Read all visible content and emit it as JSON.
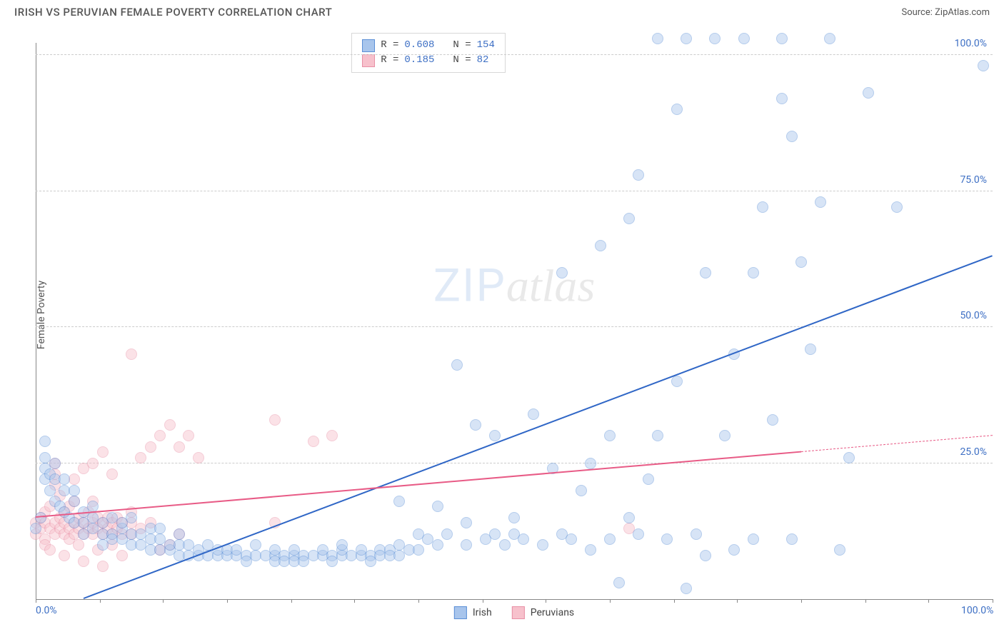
{
  "header": {
    "title": "IRISH VS PERUVIAN FEMALE POVERTY CORRELATION CHART",
    "source": "Source: ZipAtlas.com"
  },
  "chart": {
    "type": "scatter",
    "ylabel": "Female Poverty",
    "xlim": [
      0,
      100
    ],
    "ylim": [
      0,
      105
    ],
    "xtick_positions": [
      0,
      6.7,
      13.3,
      20,
      26.7,
      33.3,
      40,
      46.7,
      53.3,
      60,
      66.7,
      73.3,
      80,
      86.7,
      93.3,
      100
    ],
    "xtick_labels": {
      "0": "0.0%",
      "100": "100.0%"
    },
    "ytick_positions": [
      25,
      50,
      75,
      100
    ],
    "ytick_labels": {
      "25": "25.0%",
      "50": "50.0%",
      "75": "75.0%",
      "100": "100.0%"
    },
    "background_color": "#ffffff",
    "grid_color": "#cccccc",
    "tick_label_color": "#3d6fc4",
    "marker_radius": 8,
    "marker_opacity": 0.45,
    "series": {
      "irish": {
        "label": "Irish",
        "fill": "#a8c5ec",
        "stroke": "#5b8fd6",
        "trend_color": "#2f66c6",
        "R": "0.608",
        "N": "154",
        "trend": {
          "x1": 5,
          "y1": 0,
          "x2": 100,
          "y2": 63
        },
        "points": [
          [
            0,
            13
          ],
          [
            0.5,
            15
          ],
          [
            1,
            24
          ],
          [
            1,
            22
          ],
          [
            1,
            26
          ],
          [
            1,
            29
          ],
          [
            1.5,
            20
          ],
          [
            1.5,
            23
          ],
          [
            2,
            18
          ],
          [
            2,
            22
          ],
          [
            2,
            25
          ],
          [
            2.5,
            17
          ],
          [
            3,
            16
          ],
          [
            3,
            20
          ],
          [
            3,
            22
          ],
          [
            3.5,
            15
          ],
          [
            4,
            14
          ],
          [
            4,
            18
          ],
          [
            4,
            20
          ],
          [
            5,
            14
          ],
          [
            5,
            16
          ],
          [
            5,
            12
          ],
          [
            6,
            13
          ],
          [
            6,
            15
          ],
          [
            6,
            17
          ],
          [
            7,
            12
          ],
          [
            7,
            14
          ],
          [
            7,
            10
          ],
          [
            8,
            12
          ],
          [
            8,
            15
          ],
          [
            8,
            11
          ],
          [
            9,
            11
          ],
          [
            9,
            13
          ],
          [
            9,
            14
          ],
          [
            10,
            10
          ],
          [
            10,
            12
          ],
          [
            10,
            15
          ],
          [
            11,
            10
          ],
          [
            11,
            12
          ],
          [
            12,
            9
          ],
          [
            12,
            11
          ],
          [
            12,
            13
          ],
          [
            13,
            9
          ],
          [
            13,
            11
          ],
          [
            13,
            13
          ],
          [
            14,
            9
          ],
          [
            14,
            10
          ],
          [
            15,
            8
          ],
          [
            15,
            10
          ],
          [
            15,
            12
          ],
          [
            16,
            8
          ],
          [
            16,
            10
          ],
          [
            17,
            8
          ],
          [
            17,
            9
          ],
          [
            18,
            8
          ],
          [
            18,
            10
          ],
          [
            19,
            8
          ],
          [
            19,
            9
          ],
          [
            20,
            8
          ],
          [
            20,
            9
          ],
          [
            21,
            8
          ],
          [
            21,
            9
          ],
          [
            22,
            8
          ],
          [
            22,
            7
          ],
          [
            23,
            8
          ],
          [
            23,
            10
          ],
          [
            24,
            8
          ],
          [
            25,
            8
          ],
          [
            25,
            9
          ],
          [
            25,
            7
          ],
          [
            26,
            8
          ],
          [
            26,
            7
          ],
          [
            27,
            8
          ],
          [
            27,
            9
          ],
          [
            27,
            7
          ],
          [
            28,
            8
          ],
          [
            28,
            7
          ],
          [
            29,
            8
          ],
          [
            30,
            8
          ],
          [
            30,
            9
          ],
          [
            31,
            8
          ],
          [
            31,
            7
          ],
          [
            32,
            8
          ],
          [
            32,
            9
          ],
          [
            32,
            10
          ],
          [
            33,
            8
          ],
          [
            34,
            8
          ],
          [
            34,
            9
          ],
          [
            35,
            8
          ],
          [
            35,
            7
          ],
          [
            36,
            9
          ],
          [
            36,
            8
          ],
          [
            37,
            9
          ],
          [
            37,
            8
          ],
          [
            38,
            8
          ],
          [
            38,
            10
          ],
          [
            38,
            18
          ],
          [
            39,
            9
          ],
          [
            40,
            12
          ],
          [
            40,
            9
          ],
          [
            41,
            11
          ],
          [
            42,
            10
          ],
          [
            42,
            17
          ],
          [
            43,
            12
          ],
          [
            44,
            43
          ],
          [
            45,
            14
          ],
          [
            45,
            10
          ],
          [
            46,
            32
          ],
          [
            47,
            11
          ],
          [
            48,
            12
          ],
          [
            48,
            30
          ],
          [
            49,
            10
          ],
          [
            50,
            12
          ],
          [
            50,
            15
          ],
          [
            51,
            11
          ],
          [
            52,
            34
          ],
          [
            53,
            10
          ],
          [
            54,
            24
          ],
          [
            55,
            12
          ],
          [
            55,
            60
          ],
          [
            56,
            11
          ],
          [
            57,
            20
          ],
          [
            58,
            9
          ],
          [
            58,
            25
          ],
          [
            59,
            65
          ],
          [
            60,
            11
          ],
          [
            60,
            30
          ],
          [
            61,
            3
          ],
          [
            62,
            70
          ],
          [
            62,
            15
          ],
          [
            63,
            12
          ],
          [
            63,
            78
          ],
          [
            64,
            22
          ],
          [
            65,
            30
          ],
          [
            65,
            103
          ],
          [
            66,
            11
          ],
          [
            67,
            40
          ],
          [
            67,
            90
          ],
          [
            68,
            2
          ],
          [
            68,
            103
          ],
          [
            69,
            12
          ],
          [
            70,
            8
          ],
          [
            70,
            60
          ],
          [
            71,
            103
          ],
          [
            72,
            30
          ],
          [
            73,
            9
          ],
          [
            73,
            45
          ],
          [
            74,
            103
          ],
          [
            75,
            11
          ],
          [
            75,
            60
          ],
          [
            76,
            72
          ],
          [
            77,
            33
          ],
          [
            78,
            92
          ],
          [
            78,
            103
          ],
          [
            79,
            85
          ],
          [
            79,
            11
          ],
          [
            80,
            62
          ],
          [
            81,
            46
          ],
          [
            82,
            73
          ],
          [
            83,
            103
          ],
          [
            84,
            9
          ],
          [
            85,
            26
          ],
          [
            87,
            93
          ],
          [
            90,
            72
          ],
          [
            99,
            98
          ]
        ]
      },
      "peruvians": {
        "label": "Peruvians",
        "fill": "#f7c1cc",
        "stroke": "#e88fa5",
        "trend_color": "#e85b86",
        "R": "0.185",
        "N": "82",
        "trend": {
          "x1": 0,
          "y1": 15,
          "x2": 80,
          "y2": 27
        },
        "trend_dash": {
          "x1": 80,
          "y1": 27,
          "x2": 100,
          "y2": 30
        },
        "points": [
          [
            0,
            14
          ],
          [
            0,
            12
          ],
          [
            0.5,
            13
          ],
          [
            0.5,
            15
          ],
          [
            1,
            14
          ],
          [
            1,
            11
          ],
          [
            1,
            16
          ],
          [
            1,
            10
          ],
          [
            1.5,
            13
          ],
          [
            1.5,
            17
          ],
          [
            1.5,
            9
          ],
          [
            2,
            14
          ],
          [
            2,
            12
          ],
          [
            2,
            25
          ],
          [
            2,
            23
          ],
          [
            2,
            21
          ],
          [
            2.5,
            13
          ],
          [
            2.5,
            15
          ],
          [
            2.5,
            19
          ],
          [
            3,
            12
          ],
          [
            3,
            14
          ],
          [
            3,
            16
          ],
          [
            3,
            8
          ],
          [
            3.5,
            13
          ],
          [
            3.5,
            17
          ],
          [
            3.5,
            11
          ],
          [
            4,
            12
          ],
          [
            4,
            14
          ],
          [
            4,
            18
          ],
          [
            4,
            22
          ],
          [
            4.5,
            13
          ],
          [
            4.5,
            15
          ],
          [
            4.5,
            10
          ],
          [
            5,
            12
          ],
          [
            5,
            14
          ],
          [
            5,
            7
          ],
          [
            5,
            24
          ],
          [
            5.5,
            13
          ],
          [
            5.5,
            16
          ],
          [
            6,
            12
          ],
          [
            6,
            14
          ],
          [
            6,
            18
          ],
          [
            6,
            25
          ],
          [
            6.5,
            13
          ],
          [
            6.5,
            15
          ],
          [
            6.5,
            9
          ],
          [
            7,
            12
          ],
          [
            7,
            14
          ],
          [
            7,
            6
          ],
          [
            7,
            27
          ],
          [
            7.5,
            13
          ],
          [
            7.5,
            15
          ],
          [
            8,
            12
          ],
          [
            8,
            14
          ],
          [
            8,
            10
          ],
          [
            8,
            23
          ],
          [
            8.5,
            13
          ],
          [
            8.5,
            15
          ],
          [
            9,
            12
          ],
          [
            9,
            14
          ],
          [
            9,
            8
          ],
          [
            10,
            12
          ],
          [
            10,
            14
          ],
          [
            10,
            16
          ],
          [
            10,
            45
          ],
          [
            11,
            13
          ],
          [
            11,
            26
          ],
          [
            12,
            14
          ],
          [
            12,
            28
          ],
          [
            13,
            9
          ],
          [
            13,
            30
          ],
          [
            14,
            10
          ],
          [
            14,
            32
          ],
          [
            15,
            12
          ],
          [
            15,
            28
          ],
          [
            16,
            30
          ],
          [
            17,
            26
          ],
          [
            25,
            33
          ],
          [
            25,
            14
          ],
          [
            29,
            29
          ],
          [
            31,
            30
          ],
          [
            62,
            13
          ]
        ]
      }
    },
    "watermark": {
      "zip": "ZIP",
      "atlas": "atlas"
    }
  },
  "top_legend": {
    "rows": [
      {
        "series": "irish",
        "r_label": "R =",
        "r": "0.608",
        "n_label": "N =",
        "n": "154"
      },
      {
        "series": "peruvians",
        "r_label": "R =",
        "r": " 0.185",
        "n_label": "N =",
        "n": " 82"
      }
    ]
  }
}
